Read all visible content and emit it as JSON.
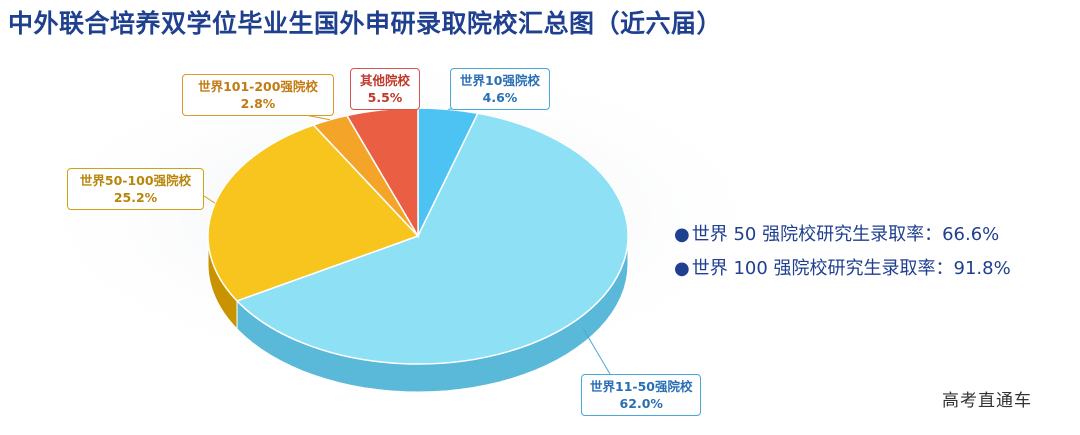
{
  "title": "中外联合培养双学位毕业生国外申研录取院校汇总图（近六届）",
  "chart_data": {
    "type": "pie",
    "slices": [
      {
        "label": "世界10强院校",
        "value": 4.6,
        "pct_text": "4.6%",
        "color": "#4dc3f3",
        "side_color": "#2a8fc0",
        "border": "#4aa8d8",
        "text_color": "#2a6fb5"
      },
      {
        "label": "世界11-50强院校",
        "value": 62.0,
        "pct_text": "62.0%",
        "color": "#8ee0f5",
        "side_color": "#5ab8d8",
        "border": "#4aa8d8",
        "text_color": "#2a6fb5"
      },
      {
        "label": "世界50-100强院校",
        "value": 25.2,
        "pct_text": "25.2%",
        "color": "#f7c51e",
        "side_color": "#c99300",
        "border": "#d4a017",
        "text_color": "#b8860b"
      },
      {
        "label": "世界101-200强院校",
        "value": 2.8,
        "pct_text": "2.8%",
        "color": "#f5a42a",
        "side_color": "#c07a10",
        "border": "#d99a2b",
        "text_color": "#c27a12"
      },
      {
        "label": "其他院校",
        "value": 5.5,
        "pct_text": "5.5%",
        "color": "#ea5f43",
        "side_color": "#b8452e",
        "border": "#d9534f",
        "text_color": "#c0392b"
      }
    ]
  },
  "stats": [
    {
      "bullet": "●",
      "text": "世界  50 强院校研究生录取率：66.6%"
    },
    {
      "bullet": "●",
      "text": "世界 100 强院校研究生录取率：91.8%"
    }
  ],
  "watermark": "高考直通车"
}
